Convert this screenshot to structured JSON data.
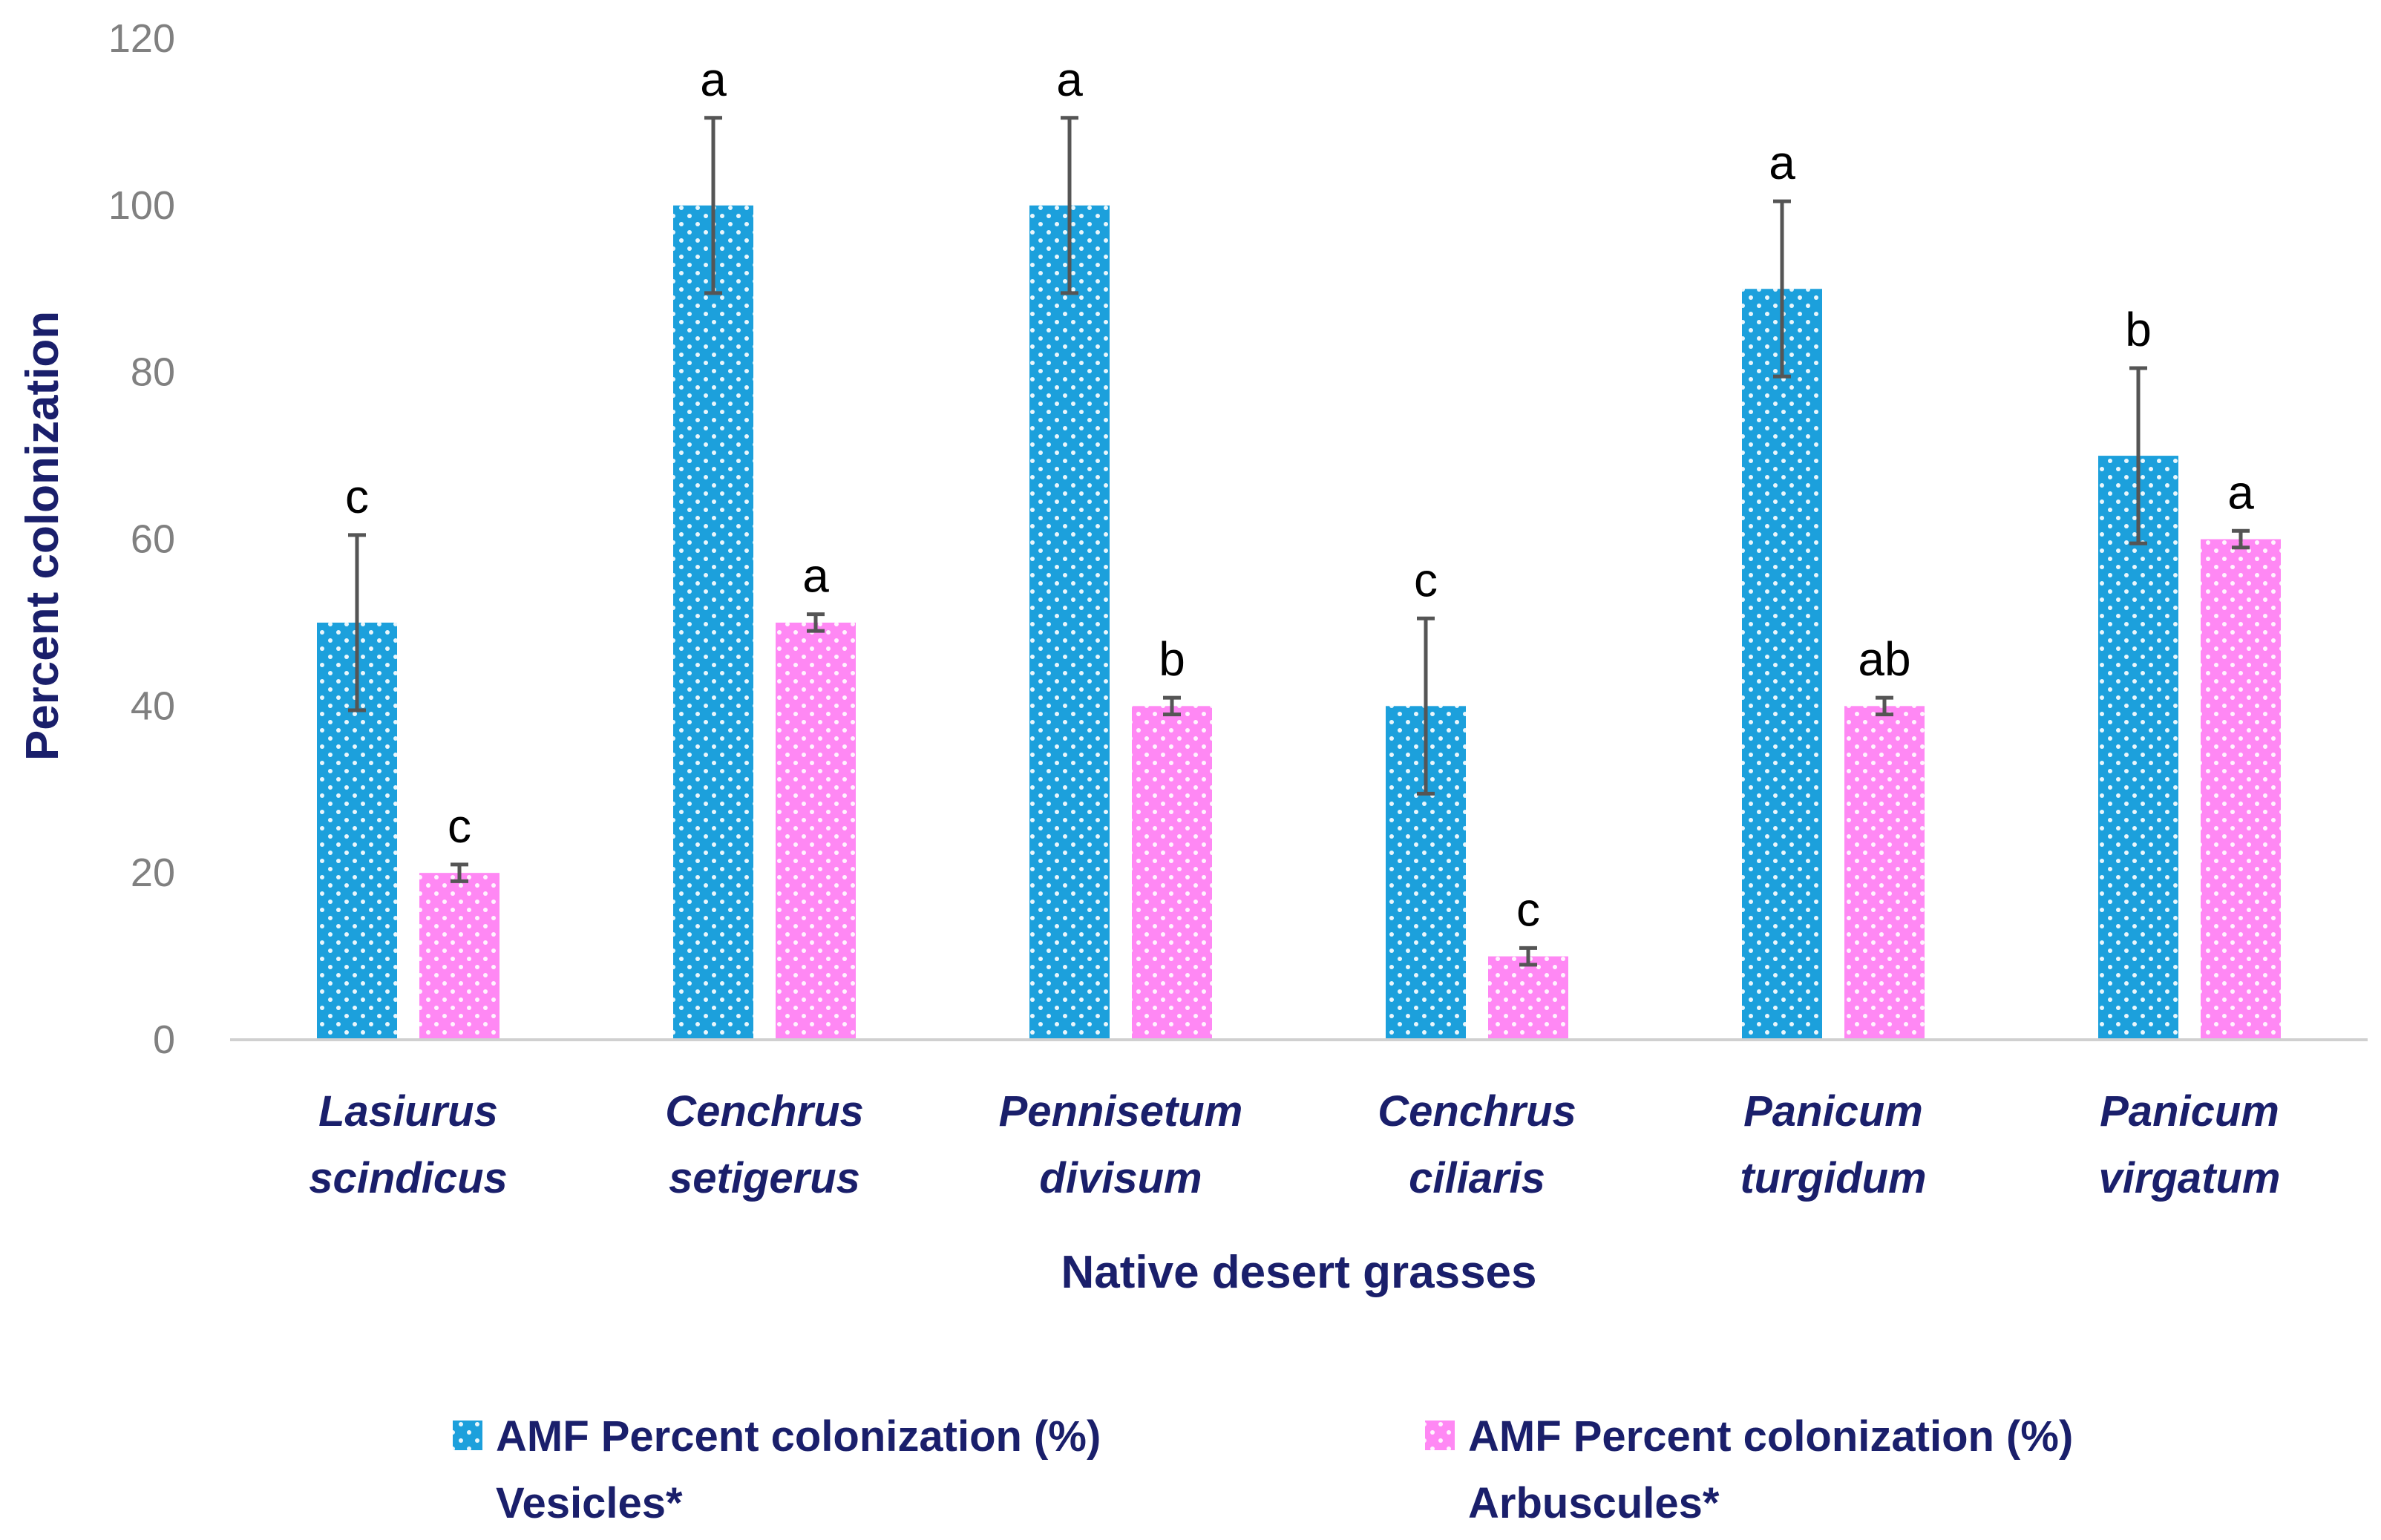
{
  "chart_data": {
    "type": "bar",
    "title": "",
    "xlabel": "Native desert grasses",
    "ylabel": "Percent colonization",
    "ylim": [
      0,
      120
    ],
    "yticks": [
      0,
      20,
      40,
      60,
      80,
      100,
      120
    ],
    "grid": false,
    "legend_position": "bottom",
    "categories": [
      [
        "Lasiurus",
        "scindicus"
      ],
      [
        "Cenchrus",
        "setigerus"
      ],
      [
        "Pennisetum",
        "divisum"
      ],
      [
        "Cenchrus",
        "ciliaris"
      ],
      [
        "Panicum",
        "turgidum"
      ],
      [
        "Panicum",
        "virgatum"
      ]
    ],
    "series": [
      {
        "name": [
          "AMF Percent colonization (%)",
          "Vesicles*"
        ],
        "color": "#1ca0dc",
        "values": [
          50,
          100,
          100,
          40,
          90,
          70
        ],
        "errors": [
          10.5,
          10.5,
          10.5,
          10.5,
          10.5,
          10.5
        ],
        "letters": [
          "c",
          "a",
          "a",
          "c",
          "a",
          "b"
        ]
      },
      {
        "name": [
          "AMF Percent colonization (%)",
          "Arbuscules*"
        ],
        "color": "#ff88f4",
        "values": [
          20,
          50,
          40,
          10,
          40,
          60
        ],
        "errors": [
          1,
          1,
          1,
          1,
          1,
          1
        ],
        "letters": [
          "c",
          "a",
          "b",
          "c",
          "ab",
          "a"
        ]
      }
    ]
  }
}
